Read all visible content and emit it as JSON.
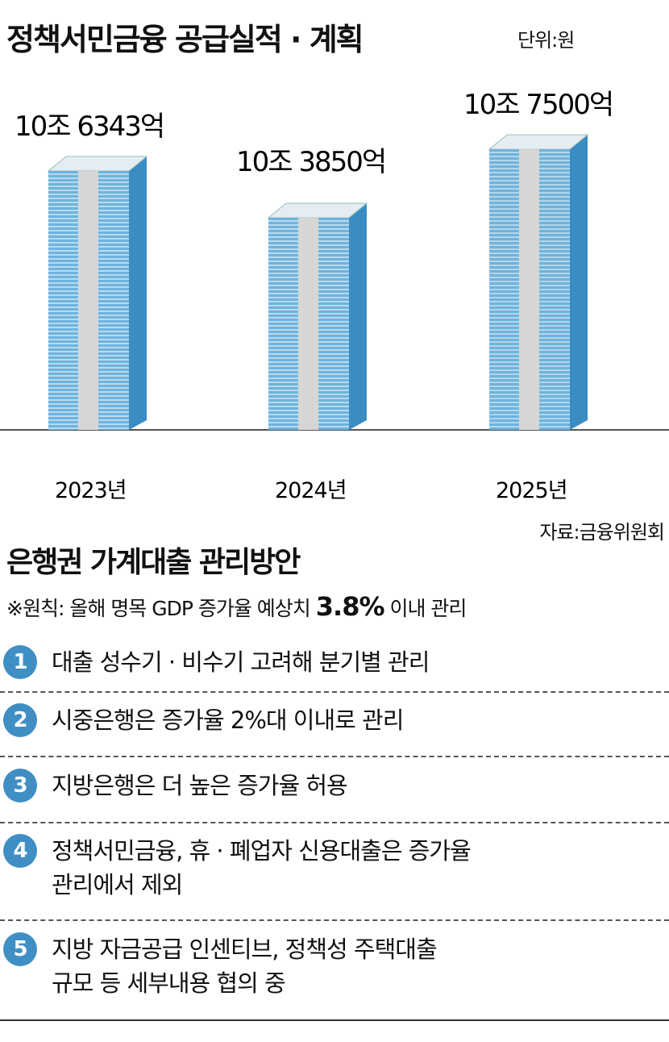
{
  "title": "정책서민금융 공급실적 · 계획",
  "unit": "단위:원",
  "source": "자료:금융위원회",
  "chart_data": {
    "type": "bar",
    "title": "정책서민금융 공급실적 · 계획",
    "categories": [
      "2023년",
      "2024년",
      "2025년"
    ],
    "values": [
      106343,
      103850,
      107500
    ],
    "value_unit": "억원",
    "labels": [
      "10조 6343억",
      "10조 3850억",
      "10조 7500억"
    ],
    "colors": {
      "front": "#6fb3dc",
      "stripe": "#e4f1fa",
      "band": "#d6d6d6",
      "side": "#3b8cc3",
      "top": "#e6edf2"
    }
  },
  "section": {
    "title": "은행권 가계대출 관리방안",
    "note_prefix": "※원칙: 올해 명목 GDP 증가율 예상치",
    "note_value": "3.8%",
    "note_suffix": "이내 관리",
    "items": [
      {
        "num": "1",
        "text": "대출 성수기 · 비수기 고려해 분기별 관리"
      },
      {
        "num": "2",
        "text": "시중은행은 증가율 2%대 이내로 관리"
      },
      {
        "num": "3",
        "text": "지방은행은 더 높은 증가율 허용"
      },
      {
        "num": "4",
        "text": "정책서민금융, 휴 · 폐업자 신용대출은 증가율\n관리에서 제외"
      },
      {
        "num": "5",
        "text": "지방 자금공급 인센티브, 정책성 주택대출\n규모 등 세부내용 협의 중"
      }
    ]
  }
}
